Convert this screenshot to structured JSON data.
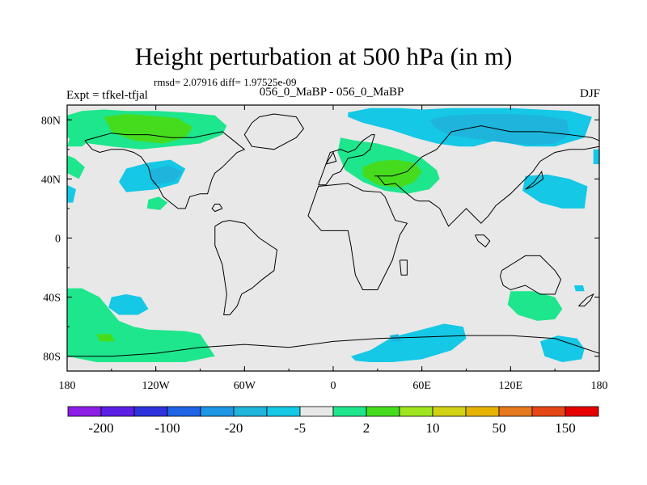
{
  "title": "Height perturbation at 500 hPa (in m)",
  "subtitle": "rmsd= 2.07916 diff= 1.97525e-09",
  "experiment_label": "Expt = tfkel-tfjal",
  "period_label": "056_0_MaBP - 056_0_MaBP",
  "season_label": "DJF",
  "colors": {
    "background_land_sea": "#e8e8e8",
    "coastline": "#000000"
  },
  "chart_data": {
    "type": "heatmap",
    "projection": "cylindrical-equidistant",
    "xlim": [
      -180,
      180
    ],
    "ylim": [
      -90,
      90
    ],
    "x_ticks": [
      {
        "value": -180,
        "label": "180"
      },
      {
        "value": -120,
        "label": "120W"
      },
      {
        "value": -60,
        "label": "60W"
      },
      {
        "value": 0,
        "label": "0"
      },
      {
        "value": 60,
        "label": "60E"
      },
      {
        "value": 120,
        "label": "120E"
      },
      {
        "value": 180,
        "label": "180"
      }
    ],
    "y_ticks": [
      {
        "value": 80,
        "label": "80N"
      },
      {
        "value": 40,
        "label": "40N"
      },
      {
        "value": 0,
        "label": "0"
      },
      {
        "value": -40,
        "label": "40S"
      },
      {
        "value": -80,
        "label": "80S"
      }
    ],
    "colorbar": {
      "colors": [
        "#8c1ee6",
        "#5a1ee6",
        "#2d32dc",
        "#1e64e6",
        "#1e96e6",
        "#1eb4dc",
        "#14c8e6",
        "#e8e8e8",
        "#1ee68c",
        "#46dc1e",
        "#a0e61e",
        "#d2d214",
        "#e6b400",
        "#e6781e",
        "#e64614",
        "#e60000"
      ],
      "tick_labels": [
        "-200",
        "-100",
        "-20",
        "-5",
        "2",
        "10",
        "50",
        "150"
      ]
    },
    "contours": [
      {
        "level": 5,
        "color": "#1ee68c",
        "lon": [
          -180,
          -170,
          -155,
          -140,
          -120,
          -100,
          -80,
          -72,
          -75,
          -90,
          -110,
          -130,
          -150,
          -165,
          -180
        ],
        "lat": [
          83,
          86,
          87,
          86,
          86,
          85,
          83,
          76,
          70,
          64,
          62,
          60,
          62,
          64,
          68
        ]
      },
      {
        "level": 12,
        "color": "#46dc1e",
        "lon": [
          -155,
          -140,
          -125,
          -105,
          -95,
          -100,
          -115,
          -135,
          -150
        ],
        "lat": [
          82,
          84,
          83,
          81,
          75,
          68,
          64,
          66,
          72
        ]
      },
      {
        "level": 5,
        "color": "#1ee68c",
        "lon": [
          -175,
          -165,
          -160,
          -170,
          -180
        ],
        "lat": [
          78,
          78,
          70,
          62,
          62
        ]
      },
      {
        "level": 5,
        "color": "#1ee68c",
        "lon": [
          -180,
          -175,
          -168,
          -172,
          -180
        ],
        "lat": [
          56,
          54,
          48,
          40,
          44
        ]
      },
      {
        "level": -5,
        "color": "#14c8e6",
        "lon": [
          -140,
          -125,
          -110,
          -100,
          -105,
          -120,
          -140,
          -145
        ],
        "lat": [
          47,
          51,
          53,
          47,
          37,
          33,
          31,
          38
        ]
      },
      {
        "level": -5,
        "color": "#14c8e6",
        "lon": [
          -180,
          -174,
          -176,
          -180
        ],
        "lat": [
          36,
          33,
          24,
          24
        ]
      },
      {
        "level": -12,
        "color": "#1eb4dc",
        "lon": [
          -125,
          -112,
          -102,
          -108,
          -122
        ],
        "lat": [
          46,
          49,
          45,
          38,
          36
        ]
      },
      {
        "level": 5,
        "color": "#1ee68c",
        "lon": [
          -125,
          -118,
          -112,
          -117,
          -126
        ],
        "lat": [
          26,
          28,
          24,
          19,
          20
        ]
      },
      {
        "level": 5,
        "color": "#1ee68c",
        "lon": [
          5,
          15,
          30,
          45,
          60,
          70,
          72,
          65,
          50,
          35,
          20,
          8,
          3
        ],
        "lat": [
          68,
          66,
          64,
          60,
          54,
          46,
          40,
          33,
          30,
          32,
          38,
          46,
          58
        ]
      },
      {
        "level": 12,
        "color": "#46dc1e",
        "lon": [
          20,
          30,
          42,
          55,
          60,
          55,
          45,
          30,
          20
        ],
        "lat": [
          48,
          52,
          53,
          51,
          45,
          38,
          34,
          36,
          42
        ]
      },
      {
        "level": -5,
        "color": "#14c8e6",
        "lon": [
          10,
          25,
          45,
          60,
          80,
          100,
          120,
          140,
          160,
          175,
          170,
          150,
          130,
          110,
          95,
          85,
          70,
          55,
          40,
          20,
          10
        ],
        "lat": [
          85,
          88,
          88,
          87,
          88,
          88,
          88,
          87,
          86,
          82,
          68,
          62,
          62,
          66,
          62,
          62,
          64,
          68,
          73,
          78,
          82
        ]
      },
      {
        "level": -12,
        "color": "#1eb4dc",
        "lon": [
          65,
          80,
          100,
          120,
          140,
          158,
          160,
          150,
          135,
          120,
          105,
          90,
          78,
          70
        ],
        "lat": [
          80,
          83,
          84,
          84,
          83,
          80,
          70,
          64,
          63,
          64,
          66,
          68,
          70,
          74
        ]
      },
      {
        "level": -5,
        "color": "#14c8e6",
        "lon": [
          130,
          145,
          160,
          172,
          170,
          155,
          140,
          128
        ],
        "lat": [
          42,
          43,
          40,
          35,
          20,
          20,
          24,
          32
        ]
      },
      {
        "level": -5,
        "color": "#14c8e6",
        "lon": [
          176,
          180,
          180,
          176
        ],
        "lat": [
          60,
          60,
          50,
          50
        ]
      },
      {
        "level": 5,
        "color": "#1ee68c",
        "lon": [
          -180,
          -170,
          -158,
          -150,
          -145,
          -135,
          -125,
          -100,
          -90,
          -80,
          -100,
          -130,
          -160,
          -180
        ],
        "lat": [
          -34,
          -34,
          -40,
          -50,
          -56,
          -60,
          -62,
          -63,
          -65,
          -80,
          -84,
          -84,
          -84,
          -80
        ]
      },
      {
        "level": 12,
        "color": "#46dc1e",
        "lon": [
          -160,
          -150,
          -148,
          -158
        ],
        "lat": [
          -65,
          -65,
          -70,
          -70
        ]
      },
      {
        "level": -5,
        "color": "#14c8e6",
        "lon": [
          -150,
          -140,
          -130,
          -125,
          -132,
          -145,
          -152
        ],
        "lat": [
          -40,
          -38,
          -40,
          -48,
          -52,
          -52,
          -47
        ]
      },
      {
        "level": -5,
        "color": "#14c8e6",
        "lon": [
          12,
          25,
          40,
          60,
          75,
          88,
          90,
          80,
          60,
          40,
          25,
          15
        ],
        "lat": [
          -80,
          -76,
          -67,
          -62,
          -58,
          -60,
          -68,
          -76,
          -82,
          -84,
          -84,
          -83
        ]
      },
      {
        "level": -12,
        "color": "#1eb4dc",
        "lon": [
          38,
          44,
          46,
          40
        ],
        "lat": [
          -66,
          -65,
          -70,
          -70
        ]
      },
      {
        "level": 5,
        "color": "#1ee68c",
        "lon": [
          120,
          135,
          150,
          155,
          150,
          138,
          125,
          118
        ],
        "lat": [
          -36,
          -36,
          -40,
          -48,
          -55,
          -56,
          -52,
          -45
        ]
      },
      {
        "level": -5,
        "color": "#14c8e6",
        "lon": [
          140,
          152,
          165,
          170,
          168,
          155,
          143
        ],
        "lat": [
          -70,
          -66,
          -68,
          -75,
          -82,
          -84,
          -80
        ]
      },
      {
        "level": -5,
        "color": "#14c8e6",
        "lon": [
          163,
          169,
          170,
          164
        ],
        "lat": [
          -32,
          -32,
          -36,
          -36
        ]
      }
    ],
    "coastlines": [
      {
        "lon": [
          -168,
          -150,
          -140,
          -125,
          -110,
          -95,
          -85,
          -75,
          -70,
          -60,
          -65,
          -75,
          -80,
          -82,
          -85,
          -90,
          -97,
          -100,
          -105,
          -110,
          -115,
          -118,
          -123,
          -125,
          -130,
          -135,
          -142,
          -150,
          -158,
          -163,
          -168
        ],
        "lat": [
          66,
          71,
          70,
          70,
          68,
          68,
          70,
          72,
          68,
          60,
          58,
          48,
          44,
          40,
          30,
          30,
          28,
          20,
          20,
          24,
          28,
          34,
          40,
          48,
          55,
          58,
          60,
          60,
          58,
          60,
          66
        ]
      },
      {
        "lon": [
          -75,
          -80,
          -82,
          -80,
          -77,
          -75
        ],
        "lat": [
          20,
          18,
          20,
          23,
          23,
          20
        ]
      },
      {
        "lon": [
          -80,
          -75,
          -70,
          -60,
          -50,
          -38,
          -40,
          -48,
          -55,
          -62,
          -65,
          -70,
          -74,
          -72,
          -75,
          -80,
          -80
        ],
        "lat": [
          8,
          11,
          12,
          10,
          0,
          -8,
          -22,
          -28,
          -34,
          -38,
          -46,
          -52,
          -52,
          -38,
          -18,
          -5,
          8
        ]
      },
      {
        "lon": [
          -50,
          -40,
          -25,
          -20,
          -25,
          -40,
          -55,
          -60,
          -55,
          -50
        ],
        "lat": [
          82,
          84,
          82,
          74,
          68,
          60,
          62,
          70,
          78,
          82
        ]
      },
      {
        "lon": [
          -17,
          -10,
          0,
          10,
          20,
          32,
          35,
          42,
          50,
          45,
          40,
          30,
          20,
          15,
          12,
          10,
          5,
          -8,
          -17
        ],
        "lat": [
          15,
          35,
          36,
          37,
          32,
          31,
          28,
          12,
          10,
          2,
          -15,
          -35,
          -35,
          -25,
          -5,
          5,
          5,
          5,
          15
        ]
      },
      {
        "lon": [
          -10,
          -5,
          0,
          5,
          10,
          20,
          25,
          28,
          26,
          20,
          15,
          10,
          5,
          -2,
          -10
        ],
        "lat": [
          36,
          36,
          43,
          45,
          54,
          56,
          60,
          70,
          70,
          66,
          60,
          58,
          60,
          58,
          36
        ]
      },
      {
        "lon": [
          -5,
          2,
          0,
          -5
        ],
        "lat": [
          50,
          52,
          58,
          50
        ]
      },
      {
        "lon": [
          28,
          40,
          50,
          60,
          70,
          80,
          100,
          120,
          140,
          160,
          175,
          180,
          180,
          170,
          160,
          150,
          140,
          135,
          128,
          125,
          120,
          110,
          105,
          100,
          95,
          90,
          80,
          78,
          72,
          65,
          58,
          55,
          50,
          42,
          35,
          30,
          28
        ],
        "lat": [
          42,
          42,
          45,
          55,
          60,
          72,
          76,
          72,
          72,
          70,
          68,
          66,
          62,
          60,
          60,
          58,
          52,
          45,
          38,
          35,
          30,
          22,
          15,
          10,
          15,
          20,
          10,
          8,
          20,
          25,
          25,
          26,
          30,
          37,
          36,
          42,
          42
        ]
      },
      {
        "lon": [
          96,
          102,
          106,
          103,
          98,
          96
        ],
        "lat": [
          2,
          2,
          -2,
          -6,
          -2,
          2
        ]
      },
      {
        "lon": [
          130,
          135,
          142,
          141,
          136,
          130
        ],
        "lat": [
          33,
          35,
          40,
          45,
          38,
          33
        ]
      },
      {
        "lon": [
          114,
          130,
          140,
          150,
          154,
          150,
          140,
          130,
          120,
          115,
          113,
          114
        ],
        "lat": [
          -22,
          -12,
          -12,
          -22,
          -28,
          -38,
          -38,
          -32,
          -35,
          -32,
          -26,
          -22
        ]
      },
      {
        "lon": [
          166,
          172,
          176,
          174,
          170,
          166
        ],
        "lat": [
          -46,
          -40,
          -38,
          -42,
          -46,
          -46
        ]
      },
      {
        "lon": [
          45,
          50,
          50,
          46,
          45
        ],
        "lat": [
          -15,
          -15,
          -25,
          -25,
          -15
        ]
      },
      {
        "lon": [
          -180,
          -150,
          -120,
          -90,
          -60,
          -30,
          0,
          30,
          60,
          90,
          120,
          150,
          180
        ],
        "lat": [
          -80,
          -80,
          -78,
          -74,
          -72,
          -74,
          -70,
          -68,
          -67,
          -66,
          -66,
          -68,
          -78
        ]
      }
    ]
  }
}
